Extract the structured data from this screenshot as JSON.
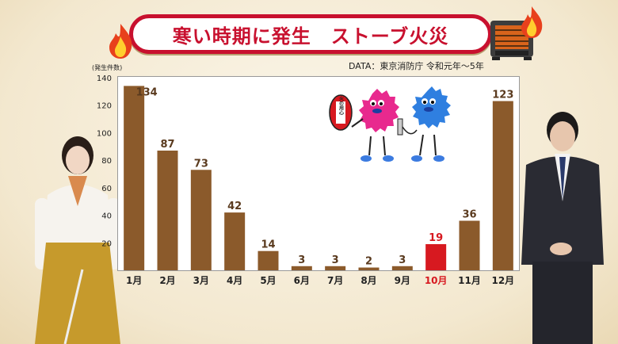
{
  "title": "寒い時期に発生　ストーブ火災",
  "source": "DATA：東京消防庁 令和元年～5年",
  "colors": {
    "bar": "#8b5a2b",
    "highlight_bar": "#d71920",
    "value_label": "#5a3a1e",
    "highlight_label": "#d71920",
    "title": "#c8102e"
  },
  "mascot_sign": "火の用心",
  "chart_data": {
    "type": "bar",
    "title": "寒い時期に発生　ストーブ火災",
    "ylabel": "(発生件数)",
    "xlabel": "",
    "categories": [
      "1月",
      "2月",
      "3月",
      "4月",
      "5月",
      "6月",
      "7月",
      "8月",
      "9月",
      "10月",
      "11月",
      "12月"
    ],
    "values": [
      134,
      87,
      73,
      42,
      14,
      3,
      3,
      2,
      3,
      19,
      36,
      123
    ],
    "highlight_index": 9,
    "ylim": [
      0,
      140
    ],
    "yticks": [
      20,
      40,
      60,
      80,
      100,
      120,
      140
    ],
    "grid": false,
    "legend": "none"
  }
}
